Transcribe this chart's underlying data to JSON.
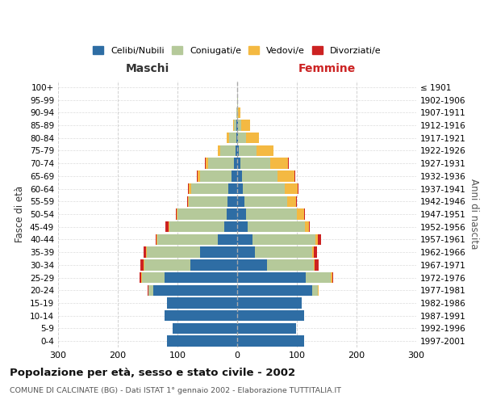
{
  "age_groups": [
    "0-4",
    "5-9",
    "10-14",
    "15-19",
    "20-24",
    "25-29",
    "30-34",
    "35-39",
    "40-44",
    "45-49",
    "50-54",
    "55-59",
    "60-64",
    "65-69",
    "70-74",
    "75-79",
    "80-84",
    "85-89",
    "90-94",
    "95-99",
    "100+"
  ],
  "birth_years": [
    "1997-2001",
    "1992-1996",
    "1987-1991",
    "1982-1986",
    "1977-1981",
    "1972-1976",
    "1967-1971",
    "1962-1966",
    "1957-1961",
    "1952-1956",
    "1947-1951",
    "1942-1946",
    "1937-1941",
    "1932-1936",
    "1927-1931",
    "1922-1926",
    "1917-1921",
    "1912-1916",
    "1907-1911",
    "1902-1906",
    "≤ 1901"
  ],
  "maschi": {
    "celibi": [
      118,
      108,
      122,
      118,
      140,
      122,
      78,
      62,
      32,
      22,
      18,
      16,
      15,
      10,
      6,
      3,
      2,
      1,
      0,
      0,
      0
    ],
    "coniugati": [
      0,
      0,
      0,
      0,
      8,
      38,
      78,
      90,
      102,
      92,
      82,
      65,
      62,
      52,
      42,
      25,
      12,
      4,
      2,
      0,
      0
    ],
    "vedovi": [
      0,
      0,
      0,
      0,
      1,
      1,
      1,
      1,
      1,
      1,
      2,
      2,
      4,
      4,
      5,
      4,
      4,
      2,
      0,
      0,
      0
    ],
    "divorziati": [
      0,
      0,
      0,
      0,
      1,
      2,
      5,
      4,
      1,
      5,
      1,
      1,
      1,
      1,
      1,
      1,
      0,
      0,
      0,
      0,
      0
    ]
  },
  "femmine": {
    "nubili": [
      112,
      98,
      112,
      108,
      125,
      115,
      50,
      30,
      26,
      18,
      15,
      12,
      10,
      8,
      5,
      3,
      1,
      1,
      0,
      0,
      0
    ],
    "coniugate": [
      0,
      0,
      0,
      0,
      10,
      42,
      78,
      95,
      105,
      95,
      85,
      72,
      70,
      60,
      50,
      30,
      14,
      6,
      2,
      1,
      0
    ],
    "vedove": [
      0,
      0,
      0,
      0,
      1,
      2,
      2,
      3,
      4,
      7,
      12,
      15,
      22,
      28,
      30,
      28,
      22,
      15,
      4,
      1,
      0
    ],
    "divorziate": [
      0,
      0,
      0,
      0,
      1,
      2,
      6,
      6,
      6,
      1,
      1,
      1,
      1,
      1,
      1,
      0,
      0,
      0,
      0,
      0,
      0
    ]
  },
  "colors": {
    "celibi": "#2e6da4",
    "coniugati": "#b5c99a",
    "vedovi": "#f4b942",
    "divorziati": "#cc2222"
  },
  "title": "Popolazione per età, sesso e stato civile - 2002",
  "subtitle": "COMUNE DI CALCINATE (BG) - Dati ISTAT 1° gennaio 2002 - Elaborazione TUTTITALIA.IT",
  "xlabel_left": "Maschi",
  "xlabel_right": "Femmine",
  "ylabel_left": "Fasce di età",
  "ylabel_right": "Anni di nascita",
  "xlim": 300,
  "bg_color": "#ffffff",
  "grid_color": "#cccccc"
}
